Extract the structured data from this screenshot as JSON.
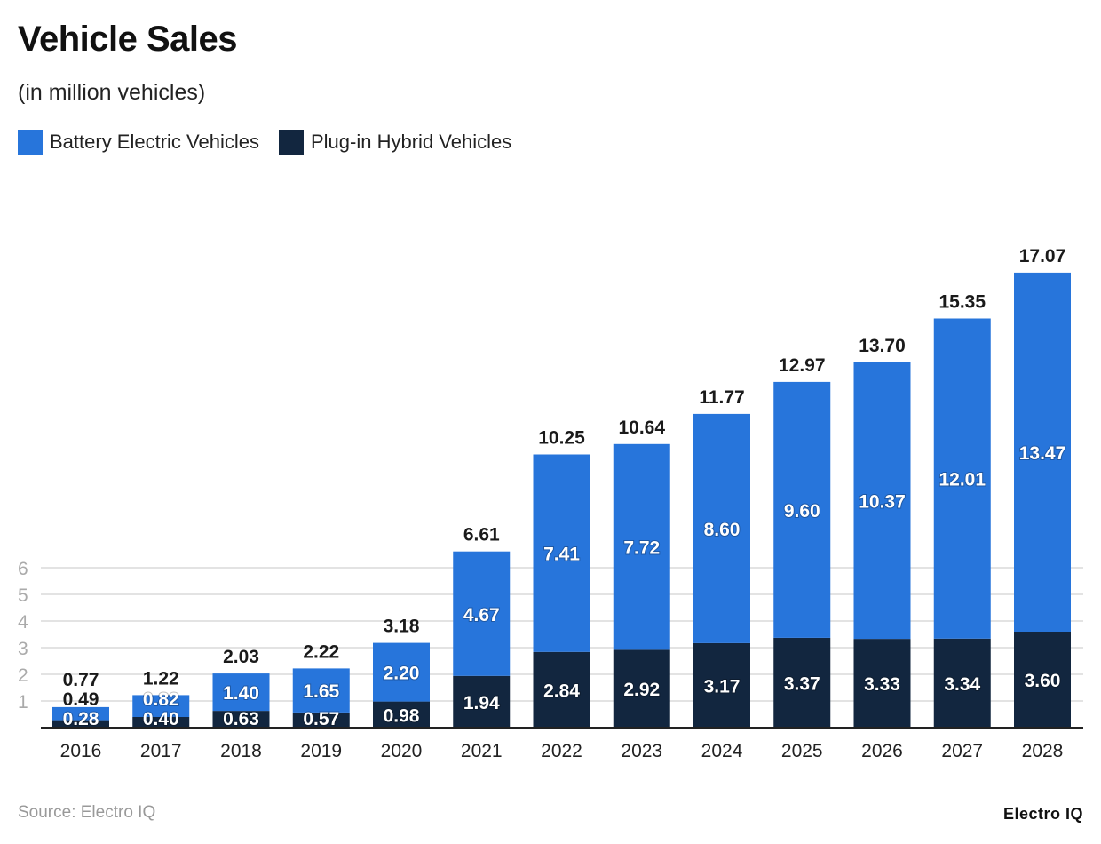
{
  "chart_data": {
    "type": "bar",
    "stacked": true,
    "title": "Vehicle Sales",
    "subtitle": "(in million vehicles)",
    "categories": [
      "2016",
      "2017",
      "2018",
      "2019",
      "2020",
      "2021",
      "2022",
      "2023",
      "2024",
      "2025",
      "2026",
      "2027",
      "2028"
    ],
    "series": [
      {
        "name": "Plug-in Hybrid Vehicles",
        "color": "#12263f",
        "values": [
          0.28,
          0.4,
          0.63,
          0.57,
          0.98,
          1.94,
          2.84,
          2.92,
          3.17,
          3.37,
          3.33,
          3.34,
          3.6
        ]
      },
      {
        "name": "Battery Electric Vehicles",
        "color": "#2775db",
        "values": [
          0.49,
          0.82,
          1.4,
          1.65,
          2.2,
          4.67,
          7.41,
          7.72,
          8.6,
          9.6,
          10.37,
          12.01,
          13.47
        ]
      }
    ],
    "totals": [
      0.77,
      1.22,
      2.03,
      2.22,
      3.18,
      6.61,
      10.25,
      10.64,
      11.77,
      12.97,
      13.7,
      15.35,
      17.07
    ],
    "yticks": [
      1,
      2,
      3,
      4,
      5,
      6
    ],
    "ylim": [
      0,
      18
    ],
    "grid": true,
    "legend": "top-left",
    "source": "Source: Electro IQ",
    "logo": "Electro IQ"
  }
}
